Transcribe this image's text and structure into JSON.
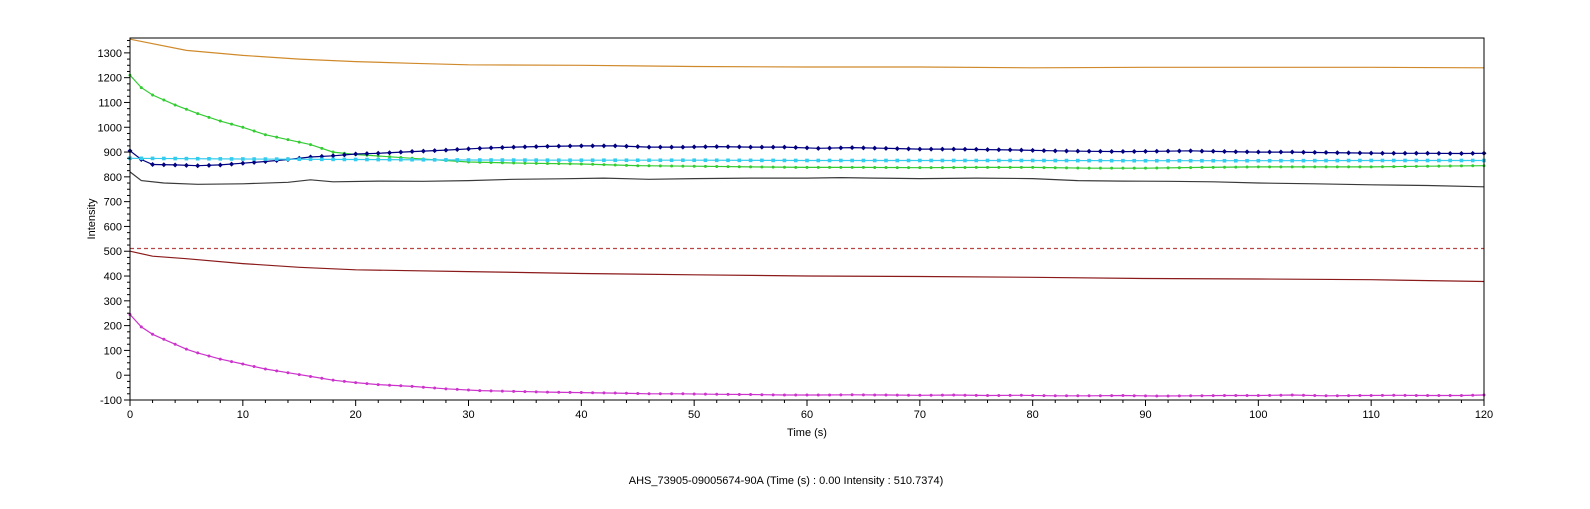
{
  "chart_data": {
    "type": "line",
    "xlabel": "Time (s)",
    "ylabel": "Intensity",
    "xlim": [
      0,
      120
    ],
    "ylim": [
      -100,
      1350
    ],
    "x_ticks": [
      0,
      10,
      20,
      30,
      40,
      50,
      60,
      70,
      80,
      90,
      100,
      110,
      120
    ],
    "y_ticks": [
      -100,
      0,
      100,
      200,
      300,
      400,
      500,
      600,
      700,
      800,
      900,
      1000,
      1100,
      1200,
      1300
    ],
    "grid": false,
    "series": [
      {
        "color": "#d08a2c",
        "marker": "none",
        "points": [
          [
            0,
            1355
          ],
          [
            5,
            1310
          ],
          [
            10,
            1290
          ],
          [
            15,
            1275
          ],
          [
            20,
            1265
          ],
          [
            25,
            1258
          ],
          [
            30,
            1252
          ],
          [
            40,
            1250
          ],
          [
            50,
            1245
          ],
          [
            60,
            1243
          ],
          [
            70,
            1243
          ],
          [
            80,
            1240
          ],
          [
            90,
            1242
          ],
          [
            100,
            1242
          ],
          [
            110,
            1242
          ],
          [
            120,
            1240
          ]
        ]
      },
      {
        "color": "#33cc33",
        "marker": "dot",
        "points": [
          [
            0,
            1210
          ],
          [
            1,
            1160
          ],
          [
            2,
            1130
          ],
          [
            4,
            1090
          ],
          [
            6,
            1055
          ],
          [
            8,
            1025
          ],
          [
            10,
            1000
          ],
          [
            12,
            970
          ],
          [
            14,
            950
          ],
          [
            16,
            930
          ],
          [
            18,
            900
          ],
          [
            20,
            890
          ],
          [
            25,
            875
          ],
          [
            30,
            860
          ],
          [
            35,
            855
          ],
          [
            40,
            852
          ],
          [
            45,
            845
          ],
          [
            50,
            843
          ],
          [
            55,
            840
          ],
          [
            60,
            838
          ],
          [
            65,
            838
          ],
          [
            70,
            837
          ],
          [
            75,
            838
          ],
          [
            80,
            838
          ],
          [
            85,
            835
          ],
          [
            90,
            835
          ],
          [
            95,
            838
          ],
          [
            100,
            840
          ],
          [
            105,
            840
          ],
          [
            110,
            840
          ],
          [
            115,
            843
          ],
          [
            120,
            845
          ]
        ]
      },
      {
        "color": "#000080",
        "marker": "diamond",
        "points": [
          [
            0,
            905
          ],
          [
            1,
            870
          ],
          [
            2,
            850
          ],
          [
            4,
            848
          ],
          [
            6,
            845
          ],
          [
            8,
            848
          ],
          [
            10,
            855
          ],
          [
            12,
            862
          ],
          [
            14,
            870
          ],
          [
            16,
            880
          ],
          [
            18,
            885
          ],
          [
            20,
            892
          ],
          [
            22,
            895
          ],
          [
            25,
            902
          ],
          [
            28,
            908
          ],
          [
            31,
            915
          ],
          [
            34,
            920
          ],
          [
            37,
            923
          ],
          [
            40,
            925
          ],
          [
            43,
            925
          ],
          [
            46,
            920
          ],
          [
            49,
            920
          ],
          [
            52,
            922
          ],
          [
            55,
            920
          ],
          [
            58,
            920
          ],
          [
            61,
            915
          ],
          [
            64,
            918
          ],
          [
            67,
            915
          ],
          [
            70,
            912
          ],
          [
            73,
            912
          ],
          [
            76,
            910
          ],
          [
            79,
            908
          ],
          [
            82,
            905
          ],
          [
            85,
            903
          ],
          [
            88,
            902
          ],
          [
            91,
            903
          ],
          [
            94,
            905
          ],
          [
            97,
            902
          ],
          [
            100,
            900
          ],
          [
            103,
            900
          ],
          [
            106,
            898
          ],
          [
            109,
            896
          ],
          [
            112,
            895
          ],
          [
            115,
            895
          ],
          [
            118,
            894
          ],
          [
            120,
            895
          ]
        ]
      },
      {
        "color": "#33ccee",
        "marker": "square",
        "points": [
          [
            0,
            875
          ],
          [
            10,
            872
          ],
          [
            20,
            870
          ],
          [
            30,
            868
          ],
          [
            40,
            867
          ],
          [
            50,
            867
          ],
          [
            60,
            866
          ],
          [
            70,
            866
          ],
          [
            80,
            866
          ],
          [
            90,
            865
          ],
          [
            100,
            865
          ],
          [
            110,
            866
          ],
          [
            120,
            866
          ]
        ]
      },
      {
        "color": "#3a3a3a",
        "marker": "none",
        "points": [
          [
            0,
            820
          ],
          [
            1,
            785
          ],
          [
            3,
            775
          ],
          [
            6,
            770
          ],
          [
            10,
            772
          ],
          [
            14,
            778
          ],
          [
            16,
            788
          ],
          [
            18,
            780
          ],
          [
            22,
            783
          ],
          [
            26,
            782
          ],
          [
            30,
            785
          ],
          [
            34,
            790
          ],
          [
            38,
            792
          ],
          [
            42,
            795
          ],
          [
            46,
            790
          ],
          [
            50,
            793
          ],
          [
            55,
            795
          ],
          [
            60,
            795
          ],
          [
            63,
            797
          ],
          [
            66,
            795
          ],
          [
            70,
            793
          ],
          [
            75,
            795
          ],
          [
            80,
            793
          ],
          [
            84,
            785
          ],
          [
            88,
            783
          ],
          [
            92,
            782
          ],
          [
            96,
            780
          ],
          [
            100,
            775
          ],
          [
            105,
            772
          ],
          [
            110,
            768
          ],
          [
            115,
            765
          ],
          [
            120,
            760
          ]
        ]
      },
      {
        "color": "#bb4444",
        "marker": "none",
        "dashed": true,
        "points": [
          [
            0,
            511
          ],
          [
            120,
            511
          ]
        ]
      },
      {
        "color": "#8b1a1a",
        "marker": "none",
        "points": [
          [
            0,
            500
          ],
          [
            2,
            480
          ],
          [
            5,
            470
          ],
          [
            10,
            450
          ],
          [
            15,
            435
          ],
          [
            20,
            425
          ],
          [
            30,
            418
          ],
          [
            40,
            410
          ],
          [
            50,
            405
          ],
          [
            60,
            400
          ],
          [
            70,
            398
          ],
          [
            80,
            395
          ],
          [
            90,
            390
          ],
          [
            100,
            388
          ],
          [
            110,
            385
          ],
          [
            120,
            378
          ]
        ]
      },
      {
        "color": "#cc33cc",
        "marker": "dot",
        "points": [
          [
            0,
            245
          ],
          [
            1,
            195
          ],
          [
            2,
            165
          ],
          [
            3,
            145
          ],
          [
            4,
            125
          ],
          [
            5,
            105
          ],
          [
            6,
            90
          ],
          [
            8,
            65
          ],
          [
            10,
            45
          ],
          [
            12,
            25
          ],
          [
            14,
            10
          ],
          [
            16,
            -5
          ],
          [
            18,
            -20
          ],
          [
            20,
            -30
          ],
          [
            22,
            -38
          ],
          [
            25,
            -45
          ],
          [
            28,
            -55
          ],
          [
            31,
            -62
          ],
          [
            34,
            -65
          ],
          [
            37,
            -68
          ],
          [
            40,
            -70
          ],
          [
            43,
            -72
          ],
          [
            46,
            -75
          ],
          [
            49,
            -75
          ],
          [
            52,
            -77
          ],
          [
            55,
            -78
          ],
          [
            58,
            -80
          ],
          [
            61,
            -80
          ],
          [
            64,
            -79
          ],
          [
            67,
            -80
          ],
          [
            70,
            -81
          ],
          [
            73,
            -80
          ],
          [
            76,
            -82
          ],
          [
            79,
            -81
          ],
          [
            82,
            -83
          ],
          [
            85,
            -83
          ],
          [
            88,
            -82
          ],
          [
            91,
            -84
          ],
          [
            94,
            -83
          ],
          [
            97,
            -82
          ],
          [
            100,
            -82
          ],
          [
            103,
            -80
          ],
          [
            106,
            -83
          ],
          [
            109,
            -82
          ],
          [
            112,
            -81
          ],
          [
            115,
            -82
          ],
          [
            118,
            -82
          ],
          [
            120,
            -80
          ]
        ]
      }
    ]
  },
  "status_text": "AHS_73905-09005674-90A (Time (s) : 0.00  Intensity : 510.7374)"
}
